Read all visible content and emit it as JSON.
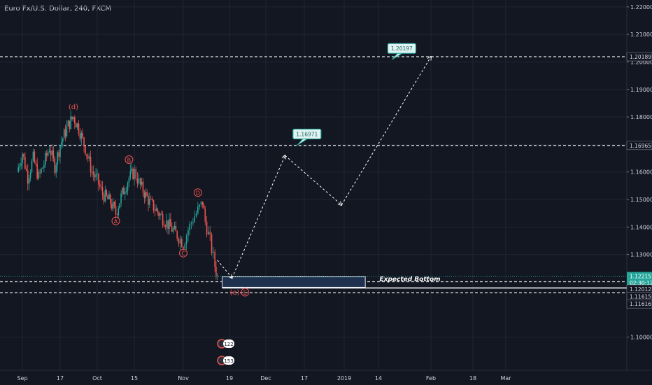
{
  "header": {
    "title": "Euro Fx/U.S. Dollar, 240, FXCM"
  },
  "chart_data": {
    "type": "candlestick",
    "title": "Euro Fx/U.S. Dollar, 240, FXCM",
    "ylim": [
      1.0915,
      1.2225
    ],
    "y_ticks": [
      "1.22000",
      "1.21000",
      "1.20000",
      "1.19000",
      "1.18000",
      "1.17000",
      "1.16000",
      "1.15000",
      "1.14000",
      "1.13000",
      "1.10000"
    ],
    "x_ticks": [
      "Sep",
      "17",
      "Oct",
      "15",
      "Nov",
      "19",
      "Dec",
      "17",
      "2019",
      "14",
      "Feb",
      "18",
      "Mar"
    ],
    "price_path": [
      [
        "Sep 01",
        1.16
      ],
      [
        "Sep 03",
        1.167
      ],
      [
        "Sep 05",
        1.158
      ],
      [
        "Sep 07",
        1.165
      ],
      [
        "Sep 09",
        1.158
      ],
      [
        "Sep 11",
        1.163
      ],
      [
        "Sep 13",
        1.169
      ],
      [
        "Sep 15",
        1.162
      ],
      [
        "Sep 17",
        1.17
      ],
      [
        "Sep 20",
        1.177
      ],
      [
        "Sep 22",
        1.18
      ],
      [
        "Sep 24",
        1.176
      ],
      [
        "Sep 27",
        1.167
      ],
      [
        "Sep 29",
        1.16
      ],
      [
        "Oct 01",
        1.157
      ],
      [
        "Oct 03",
        1.152
      ],
      [
        "Oct 06",
        1.149
      ],
      [
        "Oct 08",
        1.145
      ],
      [
        "Oct 10",
        1.151
      ],
      [
        "Oct 13",
        1.158
      ],
      [
        "Oct 15",
        1.16
      ],
      [
        "Oct 17",
        1.155
      ],
      [
        "Oct 20",
        1.149
      ],
      [
        "Oct 23",
        1.145
      ],
      [
        "Oct 26",
        1.141
      ],
      [
        "Oct 29",
        1.137
      ],
      [
        "Oct 31",
        1.134
      ],
      [
        "Nov 02",
        1.139
      ],
      [
        "Nov 04",
        1.143
      ],
      [
        "Nov 06",
        1.146
      ],
      [
        "Nov 08",
        1.149
      ],
      [
        "Nov 09",
        1.142
      ],
      [
        "Nov 11",
        1.135
      ],
      [
        "Nov 13",
        1.126
      ],
      [
        "Nov 14",
        1.122
      ]
    ],
    "projection": [
      [
        "Nov 14",
        1.128
      ],
      [
        "Nov 20",
        1.1215
      ],
      [
        "Dec 10",
        1.166
      ],
      [
        "Dec 31",
        1.148
      ],
      [
        "Feb 01",
        1.2019
      ]
    ],
    "wave_labels": [
      {
        "text": "(d)",
        "date": "Sep 22",
        "price": 1.1837
      },
      {
        "text": "B",
        "date": "Oct 13",
        "price": 1.1645
      },
      {
        "text": "A",
        "date": "Oct 08",
        "price": 1.1422
      },
      {
        "text": "D",
        "date": "Nov 06",
        "price": 1.1525
      },
      {
        "text": "C",
        "date": "Oct 31",
        "price": 1.1305
      },
      {
        "text": "(e)",
        "date": "Nov 21",
        "price": 1.1163
      },
      {
        "text": "E",
        "date": "Nov 25",
        "price": 1.1163
      }
    ],
    "horizontal_lines": [
      {
        "price": 1.20189,
        "style": "dashed"
      },
      {
        "price": 1.16965,
        "style": "dashed"
      },
      {
        "price": 1.12215,
        "style": "dotted-green"
      },
      {
        "price": 1.12012,
        "style": "dashed"
      },
      {
        "price": 1.11615,
        "style": "dashed"
      }
    ],
    "price_labels": [
      {
        "text": "1.20189",
        "price": 1.20189
      },
      {
        "text": "1.16965",
        "price": 1.16965
      },
      {
        "text": "1.12215",
        "price": 1.12215,
        "highlight": true
      },
      {
        "text": "02:30:12",
        "price": 1.11975,
        "highlight": true
      },
      {
        "text": "1.12012",
        "price": 1.11745
      },
      {
        "text": "1.11615",
        "price": 1.1148
      },
      {
        "text": "1.11616",
        "price": 1.11205
      }
    ],
    "callouts": [
      {
        "text": "1.20197",
        "date": "Jan 22",
        "price": 1.2049
      },
      {
        "text": "1.16971",
        "date": "Dec 18",
        "price": 1.1738
      }
    ],
    "zone": {
      "label": "Expected Bottom",
      "from": "Nov 16",
      "to": "Jan 09",
      "top": 1.1219,
      "bottom": 1.1181
    },
    "event_badges": [
      "122",
      "153"
    ],
    "colors": {
      "background": "#131722",
      "up": "#26a69a",
      "down": "#ef5350",
      "wave_label": "#ef5350",
      "text": "#d1d4dc",
      "zone": "#1e3250",
      "current_price": "#26a69a"
    }
  }
}
